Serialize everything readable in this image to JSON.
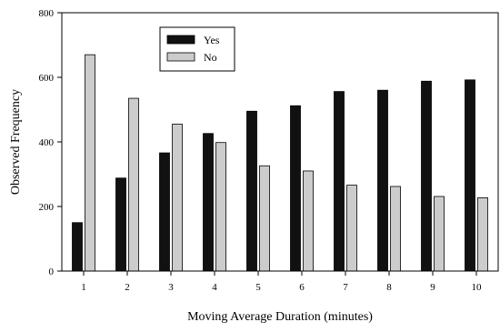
{
  "chart_data": {
    "type": "bar",
    "title": "",
    "xlabel": "Moving Average Duration (minutes)",
    "ylabel": "Observed Frequency",
    "categories": [
      "1",
      "2",
      "3",
      "4",
      "5",
      "6",
      "7",
      "8",
      "9",
      "10"
    ],
    "series": [
      {
        "name": "Yes",
        "color": "#111111",
        "values": [
          150,
          288,
          366,
          426,
          495,
          512,
          556,
          560,
          588,
          592
        ]
      },
      {
        "name": "No",
        "color": "#cccccc",
        "values": [
          670,
          535,
          455,
          398,
          326,
          310,
          266,
          262,
          231,
          227
        ]
      }
    ],
    "ylim": [
      0,
      800
    ],
    "yticks": [
      0,
      200,
      400,
      600,
      800
    ],
    "grid": false,
    "legend": "top-left"
  }
}
